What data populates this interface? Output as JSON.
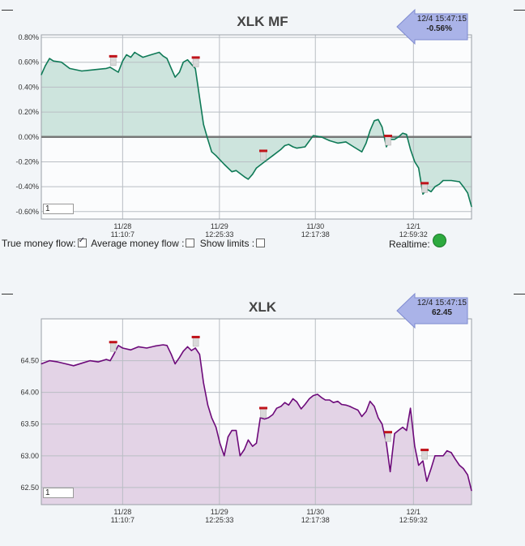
{
  "chart_data": [
    {
      "type": "area",
      "title": "XLK MF",
      "line_color": "#0f7a57",
      "fill_color": "#cde4dd",
      "zero_line": true,
      "yticks": [
        "0.80%",
        "0.60%",
        "0.40%",
        "0.20%",
        "0.00%",
        "-0.20%",
        "-0.40%",
        "-0.60%"
      ],
      "ytick_values": [
        0.8,
        0.6,
        0.4,
        0.2,
        0.0,
        -0.2,
        -0.4,
        -0.6
      ],
      "ylim": [
        -0.66,
        0.82
      ],
      "xticks": [
        {
          "date": "11/28",
          "time": "11:10:7",
          "x": 18.9
        },
        {
          "date": "11/29",
          "time": "12:25:33",
          "x": 41.4
        },
        {
          "date": "11/30",
          "time": "12:17:38",
          "x": 63.7
        },
        {
          "date": "12/1",
          "time": "12:59:32",
          "x": 86.5
        }
      ],
      "xlim": [
        0,
        100
      ],
      "callout": {
        "timestamp": "12/4 15:47:15",
        "value": "-0.56%"
      },
      "zoom_value": "1",
      "x": [
        0,
        0.9,
        1.9,
        2.8,
        4.7,
        6.6,
        9.4,
        12.3,
        15.1,
        16.0,
        17.9,
        18.9,
        19.8,
        20.8,
        21.7,
        22.6,
        23.6,
        25.5,
        27.4,
        28.3,
        29.2,
        30.2,
        31.1,
        32.1,
        33.0,
        34.0,
        35.0,
        35.8,
        37.7,
        38.7,
        39.6,
        40.6,
        42.5,
        44.3,
        45.3,
        47.2,
        48.1,
        49.1,
        50.0,
        51.9,
        53.8,
        55.7,
        56.6,
        57.5,
        58.5,
        59.4,
        61.3,
        63.2,
        65.1,
        67.0,
        68.9,
        70.8,
        72.6,
        74.5,
        75.5,
        76.4,
        77.4,
        78.3,
        79.2,
        80.2,
        81.1,
        82.1,
        83.0,
        84.0,
        84.9,
        85.8,
        86.8,
        87.7,
        88.7,
        89.6,
        90.6,
        91.5,
        92.5,
        93.4,
        95.3,
        97.2,
        98.1,
        99.1,
        100
      ],
      "values": [
        0.5,
        0.57,
        0.63,
        0.61,
        0.6,
        0.55,
        0.53,
        0.54,
        0.55,
        0.56,
        0.52,
        0.61,
        0.66,
        0.64,
        0.68,
        0.66,
        0.64,
        0.66,
        0.68,
        0.65,
        0.63,
        0.55,
        0.48,
        0.52,
        0.6,
        0.62,
        0.58,
        0.55,
        0.1,
        -0.02,
        -0.12,
        -0.15,
        -0.22,
        -0.28,
        -0.27,
        -0.32,
        -0.34,
        -0.3,
        -0.25,
        -0.2,
        -0.15,
        -0.1,
        -0.07,
        -0.06,
        -0.08,
        -0.09,
        -0.08,
        0.01,
        0.0,
        -0.03,
        -0.05,
        -0.04,
        -0.08,
        -0.12,
        -0.05,
        0.05,
        0.13,
        0.14,
        0.08,
        -0.08,
        -0.02,
        -0.02,
        0.0,
        0.03,
        0.02,
        -0.1,
        -0.2,
        -0.25,
        -0.46,
        -0.42,
        -0.44,
        -0.4,
        -0.38,
        -0.35,
        -0.35,
        -0.36,
        -0.4,
        -0.45,
        -0.56
      ],
      "markers_x": [
        16.7,
        35.9,
        51.6,
        80.6,
        89.1
      ]
    },
    {
      "type": "area",
      "title": "XLK",
      "line_color": "#6d0a7a",
      "fill_color": "#e3d3e6",
      "zero_line": false,
      "yticks": [
        "64.50",
        "64.00",
        "63.50",
        "63.00",
        "62.50"
      ],
      "ytick_values": [
        64.5,
        64.0,
        63.5,
        63.0,
        62.5
      ],
      "ylim": [
        62.23,
        65.16
      ],
      "xticks": [
        {
          "date": "11/28",
          "time": "11:10:7",
          "x": 18.9
        },
        {
          "date": "11/29",
          "time": "12:25:33",
          "x": 41.4
        },
        {
          "date": "11/30",
          "time": "12:17:38",
          "x": 63.7
        },
        {
          "date": "12/1",
          "time": "12:59:32",
          "x": 86.5
        }
      ],
      "xlim": [
        0,
        100
      ],
      "callout": {
        "timestamp": "12/4 15:47:15",
        "value": "62.45"
      },
      "zoom_value": "1",
      "x": [
        0,
        1.9,
        3.8,
        5.7,
        7.5,
        9.4,
        11.3,
        13.2,
        15.1,
        16.0,
        17.0,
        17.9,
        18.9,
        20.8,
        22.6,
        24.5,
        26.4,
        28.3,
        29.2,
        30.2,
        31.1,
        32.1,
        33.0,
        34.0,
        34.9,
        35.8,
        36.8,
        37.7,
        38.7,
        39.6,
        40.6,
        41.5,
        42.5,
        43.4,
        44.3,
        45.3,
        46.2,
        47.2,
        48.1,
        49.1,
        50.0,
        50.9,
        51.9,
        52.8,
        53.8,
        54.7,
        55.7,
        56.6,
        57.5,
        58.5,
        59.4,
        60.4,
        61.3,
        62.3,
        63.2,
        64.2,
        65.1,
        66.0,
        67.0,
        67.9,
        68.9,
        69.8,
        70.8,
        71.7,
        72.6,
        73.6,
        74.5,
        75.5,
        76.4,
        77.4,
        78.3,
        79.2,
        80.2,
        81.1,
        82.1,
        83.0,
        84.0,
        84.9,
        85.8,
        86.8,
        87.7,
        88.7,
        89.6,
        90.6,
        91.5,
        92.5,
        93.4,
        94.3,
        95.3,
        96.2,
        97.2,
        98.1,
        99.1,
        100
      ],
      "values": [
        64.45,
        64.5,
        64.48,
        64.45,
        64.42,
        64.46,
        64.5,
        64.48,
        64.52,
        64.5,
        64.62,
        64.74,
        64.7,
        64.67,
        64.72,
        64.7,
        64.73,
        64.75,
        64.74,
        64.6,
        64.45,
        64.55,
        64.65,
        64.72,
        64.66,
        64.7,
        64.6,
        64.15,
        63.8,
        63.6,
        63.45,
        63.2,
        63.0,
        63.3,
        63.4,
        63.4,
        63.0,
        63.1,
        63.25,
        63.15,
        63.2,
        63.6,
        63.58,
        63.6,
        63.65,
        63.75,
        63.78,
        63.84,
        63.8,
        63.9,
        63.85,
        63.74,
        63.81,
        63.9,
        63.95,
        63.97,
        63.92,
        63.88,
        63.88,
        63.84,
        63.86,
        63.81,
        63.8,
        63.78,
        63.75,
        63.72,
        63.62,
        63.7,
        63.86,
        63.78,
        63.6,
        63.5,
        63.2,
        62.75,
        63.35,
        63.4,
        63.45,
        63.4,
        63.75,
        63.15,
        62.85,
        62.92,
        62.6,
        62.8,
        63.0,
        63.0,
        63.0,
        63.08,
        63.05,
        62.95,
        62.85,
        62.8,
        62.7,
        62.45
      ],
      "markers_x": [
        16.7,
        35.9,
        51.6,
        80.6,
        89.1
      ]
    }
  ],
  "controls": {
    "true_mf_label": "True money flow:",
    "avg_mf_label": "Average money flow :",
    "show_limits_label": "Show limits :",
    "realtime_label": "Realtime:",
    "true_mf_checked": true
  }
}
